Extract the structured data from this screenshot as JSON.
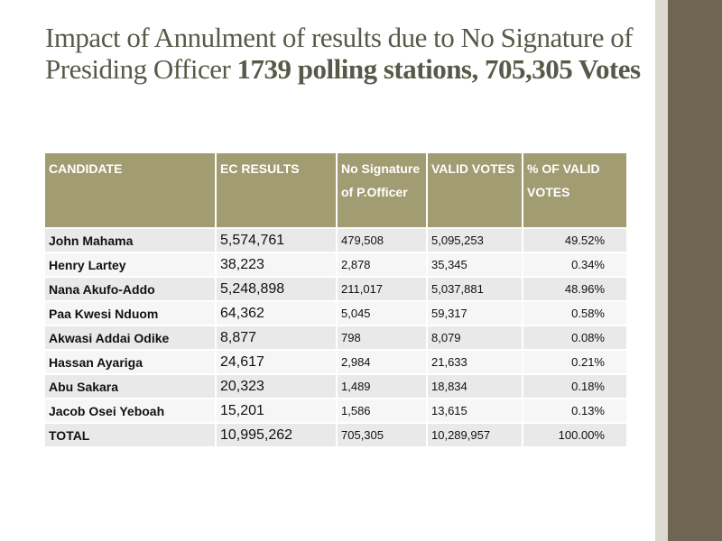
{
  "title": {
    "plain": "Impact of Annulment of results due to No Signature of Presiding Officer",
    "bold": "1739 polling stations, 705,305 Votes"
  },
  "table": {
    "columns": [
      "CANDIDATE",
      "EC RESULTS",
      "No Signature of P.Officer",
      "VALID VOTES",
      "% OF VALID VOTES"
    ],
    "rows": [
      [
        "John Mahama",
        "5,574,761",
        "479,508",
        "5,095,253",
        "49.52%"
      ],
      [
        "Henry Lartey",
        "38,223",
        "2,878",
        "35,345",
        "0.34%"
      ],
      [
        "Nana Akufo-Addo",
        "5,248,898",
        "211,017",
        "5,037,881",
        "48.96%"
      ],
      [
        "Paa Kwesi Nduom",
        "64,362",
        "5,045",
        "59,317",
        "0.58%"
      ],
      [
        "Akwasi Addai Odike",
        "8,877",
        "798",
        "8,079",
        "0.08%"
      ],
      [
        "Hassan Ayariga",
        "24,617",
        "2,984",
        "21,633",
        "0.21%"
      ],
      [
        "Abu Sakara",
        "20,323",
        "1,489",
        "18,834",
        "0.18%"
      ],
      [
        "Jacob Osei Yeboah",
        "15,201",
        "1,586",
        "13,615",
        "0.13%"
      ],
      [
        "TOTAL",
        "10,995,262",
        "705,305",
        "10,289,957",
        "100.00%"
      ]
    ]
  }
}
